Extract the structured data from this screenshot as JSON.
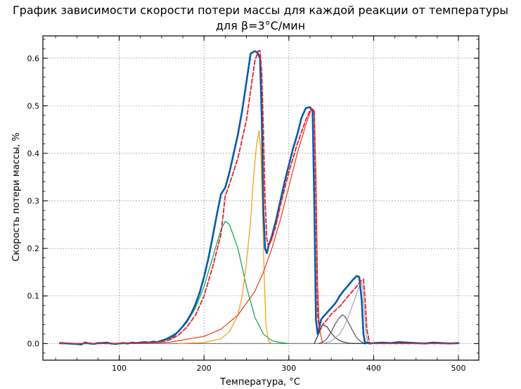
{
  "chart_data": {
    "type": "line",
    "title_line1": "График зависимости скорости потери массы для каждой реакции от температуры",
    "title_line2": "для β=3°C/мин",
    "xlabel": "Температура, °C",
    "ylabel": "Скорость потери массы, %",
    "xlim": [
      10,
      524
    ],
    "ylim": [
      -0.035,
      0.647
    ],
    "x_ticks": [
      100,
      200,
      300,
      400,
      500
    ],
    "y_ticks": [
      0.0,
      0.1,
      0.2,
      0.3,
      0.4,
      0.5,
      0.6
    ],
    "x_tick_labels": [
      "100",
      "200",
      "300",
      "400",
      "500"
    ],
    "y_tick_labels": [
      "0.0",
      "0.1",
      "0.2",
      "0.3",
      "0.4",
      "0.5",
      "0.6"
    ],
    "grid": true,
    "legend": "none",
    "series": [
      {
        "color": "#0a5aa8",
        "role": "experimental",
        "x": [
          30,
          40,
          50,
          55,
          60,
          65,
          70,
          75,
          80,
          85,
          90,
          95,
          100,
          105,
          110,
          115,
          120,
          125,
          130,
          135,
          140,
          145,
          150,
          155,
          160,
          165,
          170,
          175,
          180,
          185,
          190,
          195,
          200,
          205,
          210,
          215,
          220,
          225,
          230,
          235,
          240,
          245,
          250,
          255,
          260,
          263,
          266,
          268,
          270,
          272,
          274,
          276,
          278,
          280,
          285,
          290,
          295,
          300,
          305,
          310,
          315,
          320,
          325,
          328,
          330,
          332,
          334,
          336,
          338,
          340,
          345,
          350,
          355,
          360,
          365,
          370,
          375,
          380,
          383,
          386,
          388,
          390,
          392,
          395,
          400,
          410,
          420,
          430,
          440,
          450,
          460,
          470,
          480,
          490,
          500
        ],
        "y": [
          0.001,
          0.0,
          -0.001,
          -0.002,
          0.002,
          0.0,
          -0.001,
          0.001,
          0.001,
          0.002,
          0.0,
          -0.001,
          0.0,
          0.001,
          0.0,
          0.002,
          0.001,
          0.002,
          0.003,
          0.002,
          0.004,
          0.003,
          0.006,
          0.009,
          0.012,
          0.017,
          0.026,
          0.036,
          0.048,
          0.063,
          0.083,
          0.108,
          0.14,
          0.178,
          0.223,
          0.27,
          0.314,
          0.328,
          0.36,
          0.4,
          0.44,
          0.49,
          0.55,
          0.61,
          0.615,
          0.612,
          0.6,
          0.48,
          0.28,
          0.2,
          0.19,
          0.205,
          0.215,
          0.226,
          0.26,
          0.3,
          0.34,
          0.375,
          0.41,
          0.44,
          0.475,
          0.495,
          0.497,
          0.49,
          0.3,
          0.05,
          0.02,
          0.035,
          0.05,
          0.055,
          0.065,
          0.075,
          0.085,
          0.1,
          0.112,
          0.122,
          0.133,
          0.142,
          0.14,
          0.09,
          0.02,
          0.0,
          0.002,
          0.0,
          0.001,
          0.002,
          0.001,
          0.003,
          0.002,
          0.001,
          0.0,
          0.002,
          0.001,
          0.0,
          0.001
        ]
      },
      {
        "color": "#e8202a",
        "role": "model-sum",
        "dashed": true,
        "x": [
          30,
          100,
          140,
          150,
          160,
          170,
          180,
          190,
          200,
          210,
          220,
          225,
          230,
          240,
          250,
          260,
          264,
          266,
          268,
          270,
          272,
          274,
          276,
          280,
          285,
          290,
          300,
          310,
          320,
          326,
          330,
          332,
          334,
          336,
          340,
          345,
          350,
          360,
          370,
          380,
          385,
          388,
          390,
          392,
          395,
          400,
          500
        ],
        "y": [
          0.0,
          0.0,
          0.002,
          0.004,
          0.008,
          0.018,
          0.035,
          0.06,
          0.1,
          0.16,
          0.23,
          0.31,
          0.335,
          0.39,
          0.47,
          0.595,
          0.615,
          0.616,
          0.57,
          0.45,
          0.3,
          0.22,
          0.205,
          0.22,
          0.25,
          0.29,
          0.36,
          0.42,
          0.47,
          0.495,
          0.49,
          0.3,
          0.06,
          0.03,
          0.04,
          0.05,
          0.062,
          0.078,
          0.1,
          0.12,
          0.132,
          0.135,
          0.09,
          0.03,
          0.002,
          0.0,
          0.0
        ]
      },
      {
        "color": "#00a84f",
        "role": "reaction-1",
        "x": [
          130,
          150,
          170,
          180,
          190,
          200,
          210,
          220,
          225,
          230,
          240,
          250,
          260,
          270,
          280,
          290,
          300
        ],
        "y": [
          0.0,
          0.005,
          0.025,
          0.045,
          0.075,
          0.12,
          0.18,
          0.24,
          0.257,
          0.25,
          0.2,
          0.12,
          0.055,
          0.02,
          0.006,
          0.002,
          0.0
        ]
      },
      {
        "color": "#f59a0c",
        "role": "reaction-2",
        "x": [
          170,
          200,
          220,
          230,
          240,
          245,
          250,
          255,
          258,
          262,
          265,
          267,
          269,
          271,
          273,
          276,
          280
        ],
        "y": [
          0.0,
          0.002,
          0.01,
          0.025,
          0.06,
          0.1,
          0.17,
          0.26,
          0.34,
          0.42,
          0.448,
          0.4,
          0.28,
          0.14,
          0.04,
          0.005,
          0.0
        ]
      },
      {
        "color": "#e83a12",
        "role": "reaction-3",
        "x": [
          120,
          160,
          200,
          220,
          240,
          260,
          270,
          280,
          290,
          300,
          310,
          320,
          326,
          330,
          332,
          334,
          336,
          340
        ],
        "y": [
          0.0,
          0.003,
          0.015,
          0.03,
          0.06,
          0.11,
          0.15,
          0.2,
          0.26,
          0.33,
          0.4,
          0.46,
          0.49,
          0.49,
          0.35,
          0.12,
          0.03,
          0.0
        ]
      },
      {
        "color": "#3a2f4a",
        "role": "reaction-4",
        "x": [
          330,
          335,
          340,
          345,
          350,
          355,
          360,
          365,
          370,
          375,
          380,
          390
        ],
        "y": [
          0.0,
          0.02,
          0.04,
          0.035,
          0.022,
          0.012,
          0.006,
          0.003,
          0.001,
          0.0,
          0.0,
          0.0
        ]
      },
      {
        "color": "#5a5060",
        "role": "reaction-5",
        "x": [
          335,
          340,
          345,
          350,
          355,
          360,
          363,
          366,
          370,
          375,
          380,
          385,
          390
        ],
        "y": [
          0.0,
          0.003,
          0.01,
          0.025,
          0.042,
          0.055,
          0.06,
          0.057,
          0.045,
          0.028,
          0.012,
          0.004,
          0.0
        ]
      },
      {
        "color": "#a7a2ad",
        "role": "reaction-6",
        "x": [
          340,
          350,
          360,
          365,
          370,
          375,
          380,
          383,
          385,
          387,
          389,
          391,
          393,
          396
        ],
        "y": [
          0.0,
          0.005,
          0.02,
          0.035,
          0.055,
          0.08,
          0.105,
          0.12,
          0.13,
          0.12,
          0.07,
          0.02,
          0.004,
          0.0
        ]
      }
    ],
    "baseline": {
      "color": "#7f7f7f",
      "x": [
        30,
        500
      ],
      "y": [
        0.0,
        0.0
      ]
    }
  }
}
